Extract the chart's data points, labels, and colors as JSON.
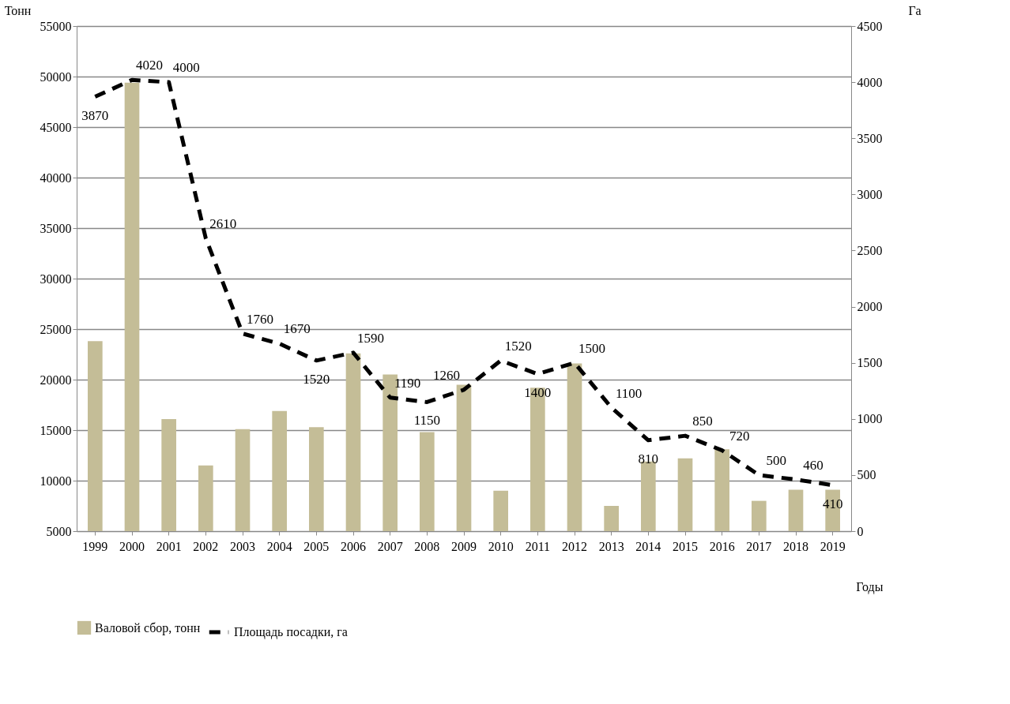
{
  "chart_data": {
    "type": "bar",
    "xlabel": "Годы",
    "ylabel": "Тонн",
    "y2label": "Га",
    "categories": [
      "1999",
      "2000",
      "2001",
      "2002",
      "2003",
      "2004",
      "2005",
      "2006",
      "2007",
      "2008",
      "2009",
      "2010",
      "2011",
      "2012",
      "2013",
      "2014",
      "2015",
      "2016",
      "2017",
      "2018",
      "2019"
    ],
    "series": [
      {
        "name": "Валовой сбор, тонн",
        "color": "#c4bd97",
        "values": [
          23800,
          49400,
          16100,
          11500,
          15100,
          16900,
          15300,
          22600,
          20500,
          14800,
          19500,
          9000,
          19200,
          21600,
          7500,
          11900,
          12200,
          13100,
          8000,
          9100,
          9100
        ]
      },
      {
        "name": "Площадь посадки, га",
        "type": "line",
        "axis": "y2",
        "color": "#000000",
        "line_style": "dashed",
        "data_labels": true,
        "values": [
          3870,
          4020,
          4000,
          2610,
          1760,
          1670,
          1520,
          1590,
          1190,
          1150,
          1260,
          1520,
          1400,
          1500,
          1100,
          810,
          850,
          720,
          500,
          460,
          410
        ]
      }
    ],
    "ylim": [
      5000,
      55000
    ],
    "yticks": [
      5000,
      10000,
      15000,
      20000,
      25000,
      30000,
      35000,
      40000,
      45000,
      50000,
      55000
    ],
    "y2lim": [
      0,
      4500
    ],
    "y2ticks": [
      0,
      500,
      1000,
      1500,
      2000,
      2500,
      3000,
      3500,
      4000,
      4500
    ],
    "grid": "y",
    "legend": "bottom"
  }
}
